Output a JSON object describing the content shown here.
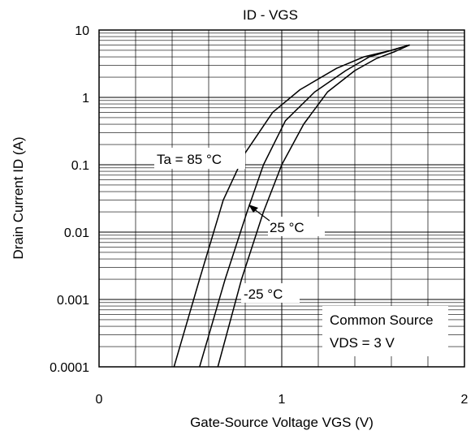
{
  "chart_data": {
    "type": "line",
    "title": "ID - VGS",
    "xlabel": "Gate-Source Voltage VGS  (V)",
    "ylabel": "Drain Current ID (A)",
    "xlim": [
      0,
      2
    ],
    "ylim": [
      0.0001,
      10
    ],
    "yscale": "log",
    "grid": true,
    "x_ticks": [
      {
        "value": 0,
        "label": "0"
      },
      {
        "value": 1,
        "label": "1"
      },
      {
        "value": 2,
        "label": "2"
      }
    ],
    "y_ticks": [
      {
        "value": 10,
        "label": "10"
      },
      {
        "value": 1,
        "label": "1"
      },
      {
        "value": 0.1,
        "label": "0.1"
      },
      {
        "value": 0.01,
        "label": "0.01"
      },
      {
        "value": 0.001,
        "label": "0.001"
      },
      {
        "value": 0.0001,
        "label": "0.0001"
      }
    ],
    "series": [
      {
        "name": "Ta = 85 °C",
        "x": [
          0.41,
          0.55,
          0.68,
          0.8,
          0.95,
          1.1,
          1.3,
          1.45,
          1.6,
          1.7
        ],
        "y": [
          0.0001,
          0.002,
          0.03,
          0.15,
          0.6,
          1.3,
          2.7,
          4.0,
          5.0,
          6.0
        ]
      },
      {
        "name": "25 °C",
        "x": [
          0.55,
          0.69,
          0.81,
          0.9,
          1.02,
          1.18,
          1.35,
          1.48,
          1.6,
          1.7
        ],
        "y": [
          0.0001,
          0.002,
          0.02,
          0.1,
          0.45,
          1.2,
          2.5,
          4.0,
          5.0,
          6.0
        ]
      },
      {
        "name": "-25 °C",
        "x": [
          0.65,
          0.78,
          0.9,
          1.0,
          1.12,
          1.25,
          1.4,
          1.52,
          1.62,
          1.7
        ],
        "y": [
          0.0001,
          0.002,
          0.02,
          0.1,
          0.4,
          1.2,
          2.5,
          3.8,
          4.8,
          6.0
        ]
      }
    ],
    "annotations": {
      "ta85": "Ta = 85 °C",
      "t25": "25 °C",
      "tm25": "-25 °C",
      "legend_line1": "Common Source",
      "legend_line2": "VDS = 3 V"
    }
  }
}
